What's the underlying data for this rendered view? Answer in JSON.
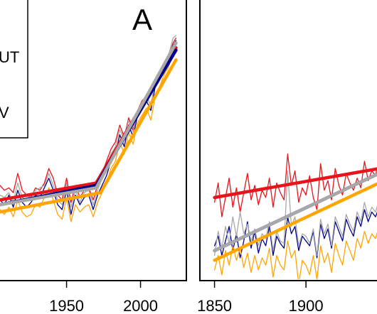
{
  "colors": {
    "red": "#e8141c",
    "navy": "#00008b",
    "gray": "#a8a8a8",
    "orange": "#ffa500",
    "frame": "#000000"
  },
  "chart_data": [
    {
      "type": "line",
      "panel_label": "A",
      "title": "",
      "xlabel": "",
      "ylabel": "",
      "xlim": [
        1905,
        2031
      ],
      "ylim": [
        0,
        100
      ],
      "x_ticks": [
        "1950",
        "2000"
      ],
      "x_tick_values": [
        1950,
        2000
      ],
      "grid": false,
      "legend": {
        "placement": "top-left",
        "entries": [
          "UT",
          "V"
        ],
        "entry_colors": [
          "",
          ""
        ]
      },
      "series": [
        {
          "color": "red",
          "style": "thin",
          "x": [
            1905,
            1908,
            1911,
            1914,
            1917,
            1920,
            1923,
            1926,
            1929,
            1932,
            1935,
            1938,
            1941,
            1944,
            1947,
            1950,
            1953,
            1956,
            1959,
            1962,
            1965,
            1968,
            1971,
            1974,
            1977,
            1980,
            1983,
            1986,
            1989,
            1992,
            1995,
            1998,
            2001,
            2004,
            2007,
            2010,
            2013,
            2016,
            2019,
            2022,
            2024
          ],
          "y": [
            35,
            33,
            34,
            32,
            40,
            33,
            31,
            30,
            34,
            33,
            36,
            42,
            38,
            31,
            29,
            38,
            28,
            35,
            30,
            33,
            34,
            29,
            35,
            40,
            45,
            50,
            53,
            60,
            55,
            63,
            58,
            66,
            70,
            72,
            68,
            78,
            80,
            86,
            88,
            94,
            96
          ]
        },
        {
          "color": "navy",
          "style": "thin",
          "x": [
            1905,
            1908,
            1911,
            1914,
            1917,
            1920,
            1923,
            1926,
            1929,
            1932,
            1935,
            1938,
            1941,
            1944,
            1947,
            1950,
            1953,
            1956,
            1959,
            1962,
            1965,
            1968,
            1971,
            1974,
            1977,
            1980,
            1983,
            1986,
            1989,
            1992,
            1995,
            1998,
            2001,
            2004,
            2007,
            2010,
            2013,
            2016,
            2019,
            2022,
            2024
          ],
          "y": [
            29,
            27,
            31,
            26,
            33,
            28,
            26,
            28,
            31,
            30,
            34,
            38,
            33,
            27,
            25,
            33,
            23,
            31,
            27,
            30,
            31,
            25,
            31,
            35,
            39,
            45,
            48,
            56,
            51,
            60,
            55,
            64,
            67,
            70,
            66,
            76,
            79,
            84,
            87,
            93,
            95
          ]
        },
        {
          "color": "gray",
          "style": "thin",
          "x": [
            1905,
            1908,
            1911,
            1914,
            1917,
            1920,
            1923,
            1926,
            1929,
            1932,
            1935,
            1938,
            1941,
            1944,
            1947,
            1950,
            1953,
            1956,
            1959,
            1962,
            1965,
            1968,
            1971,
            1974,
            1977,
            1980,
            1983,
            1986,
            1989,
            1992,
            1995,
            1998,
            2001,
            2004,
            2007,
            2010,
            2013,
            2016,
            2019,
            2022,
            2024
          ],
          "y": [
            31,
            30,
            32,
            28,
            36,
            30,
            29,
            31,
            33,
            34,
            35,
            40,
            35,
            29,
            27,
            36,
            26,
            33,
            28,
            32,
            33,
            27,
            33,
            38,
            42,
            48,
            51,
            58,
            54,
            62,
            57,
            66,
            69,
            72,
            68,
            78,
            81,
            86,
            89,
            96,
            97
          ]
        },
        {
          "color": "orange",
          "style": "thin",
          "x": [
            1905,
            1908,
            1911,
            1914,
            1917,
            1920,
            1923,
            1926,
            1929,
            1932,
            1935,
            1938,
            1941,
            1944,
            1947,
            1950,
            1953,
            1956,
            1959,
            1962,
            1965,
            1968,
            1971,
            1974,
            1977,
            1980,
            1983,
            1986,
            1989,
            1992,
            1995,
            1998,
            2001,
            2004,
            2007,
            2010,
            2013,
            2016,
            2019,
            2022,
            2024
          ],
          "y": [
            25,
            23,
            26,
            22,
            29,
            24,
            22,
            23,
            27,
            26,
            30,
            34,
            29,
            23,
            21,
            30,
            20,
            27,
            24,
            26,
            27,
            22,
            28,
            32,
            36,
            42,
            45,
            53,
            48,
            57,
            52,
            61,
            64,
            67,
            62,
            72,
            76,
            81,
            84,
            91,
            93
          ]
        },
        {
          "color": "red",
          "style": "trend",
          "x": [
            1905,
            1970,
            2024
          ],
          "y": [
            29,
            36,
            92
          ]
        },
        {
          "color": "navy",
          "style": "trend",
          "x": [
            1905,
            1970,
            2024
          ],
          "y": [
            27,
            35,
            91
          ]
        },
        {
          "color": "gray",
          "style": "trend",
          "x": [
            1905,
            1970,
            2024
          ],
          "y": [
            27,
            34,
            94
          ]
        },
        {
          "color": "orange",
          "style": "trend",
          "x": [
            1905,
            1973,
            2024
          ],
          "y": [
            24,
            32,
            87
          ]
        }
      ]
    },
    {
      "type": "line",
      "title": "",
      "xlabel": "",
      "ylabel": "",
      "xlim": [
        1842,
        1940
      ],
      "ylim": [
        0,
        100
      ],
      "x_ticks": [
        "1850",
        "1900"
      ],
      "x_tick_values": [
        1850,
        1900
      ],
      "grid": false,
      "series": [
        {
          "color": "red",
          "style": "thin",
          "x": [
            1850,
            1852,
            1854,
            1856,
            1858,
            1860,
            1862,
            1864,
            1866,
            1868,
            1870,
            1872,
            1874,
            1876,
            1878,
            1880,
            1882,
            1884,
            1886,
            1888,
            1890,
            1892,
            1894,
            1896,
            1898,
            1900,
            1902,
            1904,
            1906,
            1908,
            1910,
            1912,
            1914,
            1916,
            1918,
            1920,
            1922,
            1924,
            1926,
            1928,
            1930,
            1932,
            1934,
            1936,
            1938,
            1940
          ],
          "y": [
            28,
            36,
            22,
            30,
            38,
            26,
            34,
            24,
            32,
            40,
            29,
            35,
            27,
            33,
            30,
            38,
            26,
            36,
            32,
            29,
            48,
            35,
            41,
            28,
            34,
            31,
            39,
            30,
            25,
            44,
            33,
            37,
            29,
            42,
            35,
            31,
            40,
            36,
            33,
            38,
            34,
            45,
            37,
            41,
            39,
            46
          ]
        },
        {
          "color": "navy",
          "style": "thin",
          "x": [
            1850,
            1852,
            1854,
            1856,
            1858,
            1860,
            1862,
            1864,
            1866,
            1868,
            1870,
            1872,
            1874,
            1876,
            1878,
            1880,
            1882,
            1884,
            1886,
            1888,
            1890,
            1892,
            1894,
            1896,
            1898,
            1900,
            1902,
            1904,
            1906,
            1908,
            1910,
            1912,
            1914,
            1916,
            1918,
            1920,
            1922,
            1924,
            1926,
            1928,
            1930,
            1932,
            1934,
            1936,
            1938,
            1940
          ],
          "y": [
            10,
            14,
            6,
            12,
            18,
            8,
            15,
            5,
            12,
            20,
            9,
            16,
            7,
            13,
            10,
            18,
            6,
            14,
            11,
            9,
            22,
            15,
            18,
            8,
            14,
            12,
            10,
            16,
            5,
            19,
            13,
            17,
            9,
            20,
            16,
            12,
            21,
            17,
            14,
            22,
            18,
            25,
            20,
            24,
            22,
            26
          ]
        },
        {
          "color": "gray",
          "style": "thin",
          "x": [
            1850,
            1852,
            1854,
            1856,
            1858,
            1860,
            1862,
            1864,
            1866,
            1868,
            1870,
            1872,
            1874,
            1876,
            1878,
            1880,
            1882,
            1884,
            1886,
            1888,
            1890,
            1892,
            1894,
            1896,
            1898,
            1900,
            1902,
            1904,
            1906,
            1908,
            1910,
            1912,
            1914,
            1916,
            1918,
            1920,
            1922,
            1924,
            1926,
            1928,
            1930,
            1932,
            1934,
            1936,
            1938,
            1940
          ],
          "y": [
            6,
            16,
            9,
            18,
            11,
            22,
            14,
            24,
            15,
            19,
            12,
            17,
            10,
            15,
            13,
            20,
            8,
            16,
            12,
            11,
            41,
            18,
            22,
            10,
            15,
            14,
            11,
            17,
            6,
            21,
            15,
            19,
            10,
            22,
            18,
            14,
            23,
            19,
            16,
            24,
            20,
            28,
            22,
            26,
            24,
            29
          ]
        },
        {
          "color": "orange",
          "style": "thin",
          "x": [
            1850,
            1852,
            1854,
            1856,
            1858,
            1860,
            1862,
            1864,
            1866,
            1868,
            1870,
            1872,
            1874,
            1876,
            1878,
            1880,
            1882,
            1884,
            1886,
            1888,
            1890,
            1892,
            1894,
            1896,
            1898,
            1900,
            1902,
            1904,
            1906,
            1908,
            1910,
            1912,
            1914,
            1916,
            1918,
            1920,
            1922,
            1924,
            1926,
            1928,
            1930,
            1932,
            1934,
            1936,
            1938,
            1940
          ],
          "y": [
            0,
            6,
            -2,
            8,
            2,
            10,
            4,
            9,
            1,
            7,
            -1,
            6,
            0,
            5,
            2,
            9,
            -3,
            6,
            2,
            0,
            12,
            5,
            8,
            -6,
            4,
            2,
            -2,
            6,
            -4,
            10,
            3,
            7,
            -1,
            11,
            6,
            2,
            12,
            8,
            4,
            13,
            9,
            16,
            11,
            15,
            13,
            18
          ]
        },
        {
          "color": "red",
          "style": "trend",
          "x": [
            1850,
            1940
          ],
          "y": [
            30,
            42
          ]
        },
        {
          "color": "navy",
          "style": "trend",
          "x": [
            1850,
            1940
          ],
          "y": [
            8,
            40
          ]
        },
        {
          "color": "gray",
          "style": "trend",
          "x": [
            1850,
            1940
          ],
          "y": [
            8,
            40
          ]
        },
        {
          "color": "orange",
          "style": "trend",
          "x": [
            1850,
            1940
          ],
          "y": [
            4,
            36
          ]
        }
      ]
    }
  ]
}
